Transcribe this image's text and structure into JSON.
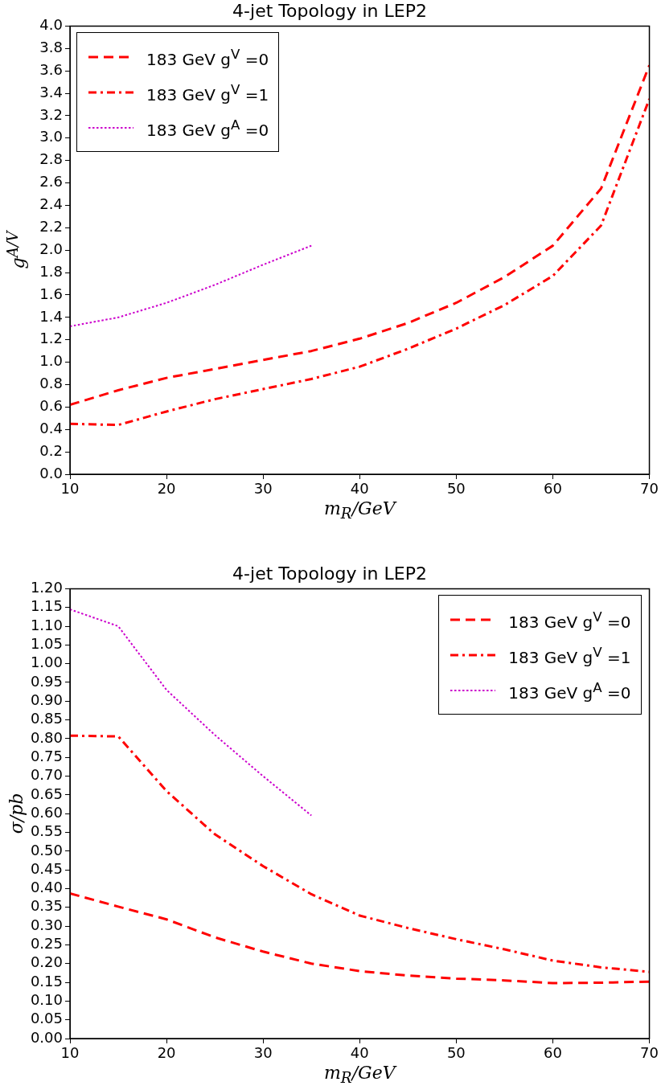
{
  "chart_data": [
    {
      "type": "line",
      "title": "4-jet Topology in LEP2",
      "xlabel": "m$_{R}$/GeV",
      "ylabel": "g$^{A/V}$",
      "x": [
        10,
        15,
        20,
        25,
        30,
        35,
        40,
        45,
        50,
        55,
        60,
        65,
        70
      ],
      "xlim": [
        10,
        70
      ],
      "xticks": [
        10,
        20,
        30,
        40,
        50,
        60,
        70
      ],
      "ylim": [
        0,
        4
      ],
      "yticks": [
        {
          "value": 0,
          "label": "0.0"
        },
        {
          "value": 0.2,
          "label": "0.2"
        },
        {
          "value": 0.4,
          "label": "0.4"
        },
        {
          "value": 0.6,
          "label": "0.6"
        },
        {
          "value": 0.8,
          "label": "0.8"
        },
        {
          "value": 1,
          "label": "1.0"
        },
        {
          "value": 1.2,
          "label": "1.2"
        },
        {
          "value": 1.4,
          "label": "1.4"
        },
        {
          "value": 1.6,
          "label": "1.6"
        },
        {
          "value": 1.8,
          "label": "1.8"
        },
        {
          "value": 2,
          "label": "2.0"
        },
        {
          "value": 2.2,
          "label": "2.2"
        },
        {
          "value": 2.4,
          "label": "2.4"
        },
        {
          "value": 2.6,
          "label": "2.6"
        },
        {
          "value": 2.8,
          "label": "2.8"
        },
        {
          "value": 3,
          "label": "3.0"
        },
        {
          "value": 3.2,
          "label": "3.2"
        },
        {
          "value": 3.4,
          "label": "3.4"
        },
        {
          "value": 3.6,
          "label": "3.6"
        },
        {
          "value": 3.8,
          "label": "3.8"
        },
        {
          "value": 4,
          "label": "4.0"
        }
      ],
      "grid": false,
      "legend": "top left",
      "marker": "none",
      "series": [
        {
          "name": "183 GeV g$^{V}$ =0",
          "color": "#ff0000",
          "line_style": "dashed",
          "values": [
            0.62,
            0.75,
            0.86,
            0.94,
            1.02,
            1.1,
            1.21,
            1.35,
            1.53,
            1.76,
            2.04,
            2.55,
            3.65
          ]
        },
        {
          "name": "183 GeV g$^{V}$ =1",
          "color": "#ff0000",
          "line_style": "dashdot",
          "values": [
            0.45,
            0.44,
            0.56,
            0.67,
            0.76,
            0.85,
            0.96,
            1.12,
            1.3,
            1.51,
            1.77,
            2.22,
            3.35
          ]
        },
        {
          "name": "183 GeV g$^{A}$ =0",
          "color": "#cc00cc",
          "line_style": "dotted",
          "values": [
            1.32,
            1.4,
            1.53,
            1.69,
            1.87,
            2.04,
            null,
            null,
            null,
            null,
            null,
            null,
            null
          ]
        }
      ]
    },
    {
      "type": "line",
      "title": "4-jet Topology in LEP2",
      "xlabel": "m$_{R}$/GeV",
      "ylabel": "σ/pb",
      "x": [
        10,
        15,
        20,
        25,
        30,
        35,
        40,
        45,
        50,
        55,
        60,
        65,
        70
      ],
      "xlim": [
        10,
        70
      ],
      "xticks": [
        10,
        20,
        30,
        40,
        50,
        60,
        70
      ],
      "ylim": [
        0,
        1.2
      ],
      "yticks": [
        {
          "value": 0,
          "label": "0.00"
        },
        {
          "value": 0.05,
          "label": "0.05"
        },
        {
          "value": 0.1,
          "label": "0.10"
        },
        {
          "value": 0.15,
          "label": "0.15"
        },
        {
          "value": 0.2,
          "label": "0.20"
        },
        {
          "value": 0.25,
          "label": "0.25"
        },
        {
          "value": 0.3,
          "label": "0.30"
        },
        {
          "value": 0.35,
          "label": "0.35"
        },
        {
          "value": 0.4,
          "label": "0.40"
        },
        {
          "value": 0.45,
          "label": "0.45"
        },
        {
          "value": 0.5,
          "label": "0.50"
        },
        {
          "value": 0.55,
          "label": "0.55"
        },
        {
          "value": 0.6,
          "label": "0.60"
        },
        {
          "value": 0.65,
          "label": "0.65"
        },
        {
          "value": 0.7,
          "label": "0.70"
        },
        {
          "value": 0.75,
          "label": "0.75"
        },
        {
          "value": 0.8,
          "label": "0.80"
        },
        {
          "value": 0.85,
          "label": "0.85"
        },
        {
          "value": 0.9,
          "label": "0.90"
        },
        {
          "value": 0.95,
          "label": "0.95"
        },
        {
          "value": 1,
          "label": "1.00"
        },
        {
          "value": 1.05,
          "label": "1.05"
        },
        {
          "value": 1.1,
          "label": "1.10"
        },
        {
          "value": 1.15,
          "label": "1.15"
        },
        {
          "value": 1.2,
          "label": "1.20"
        }
      ],
      "grid": false,
      "legend": "top right",
      "marker": "none",
      "series": [
        {
          "name": "183 GeV g$^{V}$ =0",
          "color": "#ff0000",
          "line_style": "dashed",
          "values": [
            0.387,
            0.352,
            0.318,
            0.27,
            0.232,
            0.2,
            0.18,
            0.168,
            0.16,
            0.155,
            0.148,
            0.149,
            0.152
          ]
        },
        {
          "name": "183 GeV g$^{V}$ =1",
          "color": "#ff0000",
          "line_style": "dashdot",
          "values": [
            0.808,
            0.806,
            0.66,
            0.545,
            0.46,
            0.385,
            0.328,
            0.295,
            0.265,
            0.238,
            0.208,
            0.19,
            0.178
          ]
        },
        {
          "name": "183 GeV g$^{A}$ =0",
          "color": "#cc00cc",
          "line_style": "dotted",
          "values": [
            1.145,
            1.1,
            0.93,
            0.81,
            0.7,
            0.595,
            null,
            null,
            null,
            null,
            null,
            null,
            null
          ]
        }
      ]
    }
  ]
}
